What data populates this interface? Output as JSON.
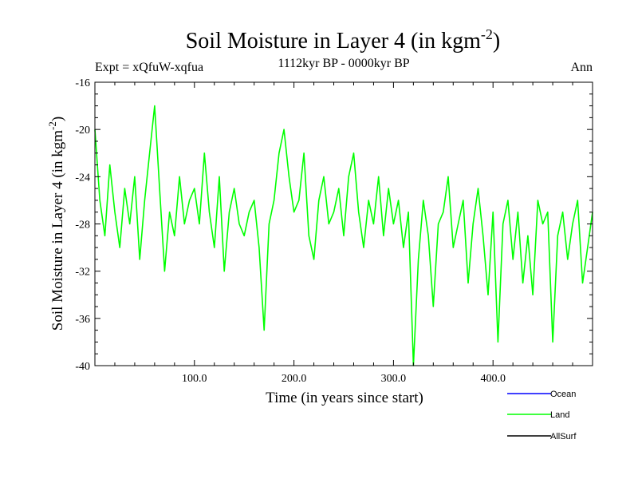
{
  "chart_data": {
    "type": "line",
    "title": {
      "text": "Soil Moisture in Layer 4 (in kgm",
      "sup": "-2",
      "close": ")"
    },
    "subtitle_left": "Expt = xQfuW-xqfua",
    "subtitle_center": "1112kyr BP - 0000kyr BP",
    "subtitle_right": "Ann",
    "xlabel": "Time (in years since start)",
    "ylabel": {
      "text": "Soil Moisture in Layer 4 (in kgm",
      "sup": "-2",
      "close": ")"
    },
    "xlim": [
      0,
      500
    ],
    "ylim": [
      -40,
      -16
    ],
    "x_ticks": [
      100,
      200,
      300,
      400
    ],
    "x_tick_labels": [
      "100.0",
      "200.0",
      "300.0",
      "400.0"
    ],
    "y_ticks": [
      -16,
      -20,
      -24,
      -28,
      -32,
      -36,
      -40
    ],
    "y_tick_labels": [
      "-16",
      "-20",
      "-24",
      "-28",
      "-32",
      "-36",
      "-40"
    ],
    "colors": {
      "ocean": "#0000ff",
      "land": "#00ff00",
      "allsurf": "#000000"
    },
    "legend": [
      {
        "name": "Ocean",
        "color": "#0000ff"
      },
      {
        "name": "Land",
        "color": "#00ff00"
      },
      {
        "name": "AllSurf",
        "color": "#000000"
      }
    ],
    "series": [
      {
        "name": "Land",
        "color": "#00ff00",
        "x": [
          0,
          5,
          10,
          15,
          20,
          25,
          30,
          35,
          40,
          45,
          50,
          55,
          60,
          65,
          70,
          75,
          80,
          85,
          90,
          95,
          100,
          105,
          110,
          115,
          120,
          125,
          130,
          135,
          140,
          145,
          150,
          155,
          160,
          165,
          170,
          175,
          180,
          185,
          190,
          195,
          200,
          205,
          210,
          215,
          220,
          225,
          230,
          235,
          240,
          245,
          250,
          255,
          260,
          265,
          270,
          275,
          280,
          285,
          290,
          295,
          300,
          305,
          310,
          315,
          320,
          325,
          330,
          335,
          340,
          345,
          350,
          355,
          360,
          365,
          370,
          375,
          380,
          385,
          390,
          395,
          400,
          405,
          410,
          415,
          420,
          425,
          430,
          435,
          440,
          445,
          450,
          455,
          460,
          465,
          470,
          475,
          480,
          485,
          490,
          495,
          500
        ],
        "values": [
          -20,
          -26,
          -29,
          -23,
          -27,
          -30,
          -25,
          -28,
          -24,
          -31,
          -26,
          -22,
          -18,
          -25,
          -32,
          -27,
          -29,
          -24,
          -28,
          -26,
          -25,
          -28,
          -22,
          -27,
          -30,
          -24,
          -32,
          -27,
          -25,
          -28,
          -29,
          -27,
          -26,
          -30,
          -37,
          -28,
          -26,
          -22,
          -20,
          -24,
          -27,
          -26,
          -22,
          -29,
          -31,
          -26,
          -24,
          -28,
          -27,
          -25,
          -29,
          -24,
          -22,
          -27,
          -30,
          -26,
          -28,
          -24,
          -29,
          -25,
          -28,
          -26,
          -30,
          -27,
          -40,
          -31,
          -26,
          -29,
          -35,
          -28,
          -27,
          -24,
          -30,
          -28,
          -26,
          -33,
          -28,
          -25,
          -29,
          -34,
          -27,
          -38,
          -28,
          -26,
          -31,
          -27,
          -33,
          -29,
          -34,
          -26,
          -28,
          -27,
          -38,
          -29,
          -27,
          -31,
          -28,
          -26,
          -33,
          -30,
          -27
        ]
      }
    ]
  }
}
